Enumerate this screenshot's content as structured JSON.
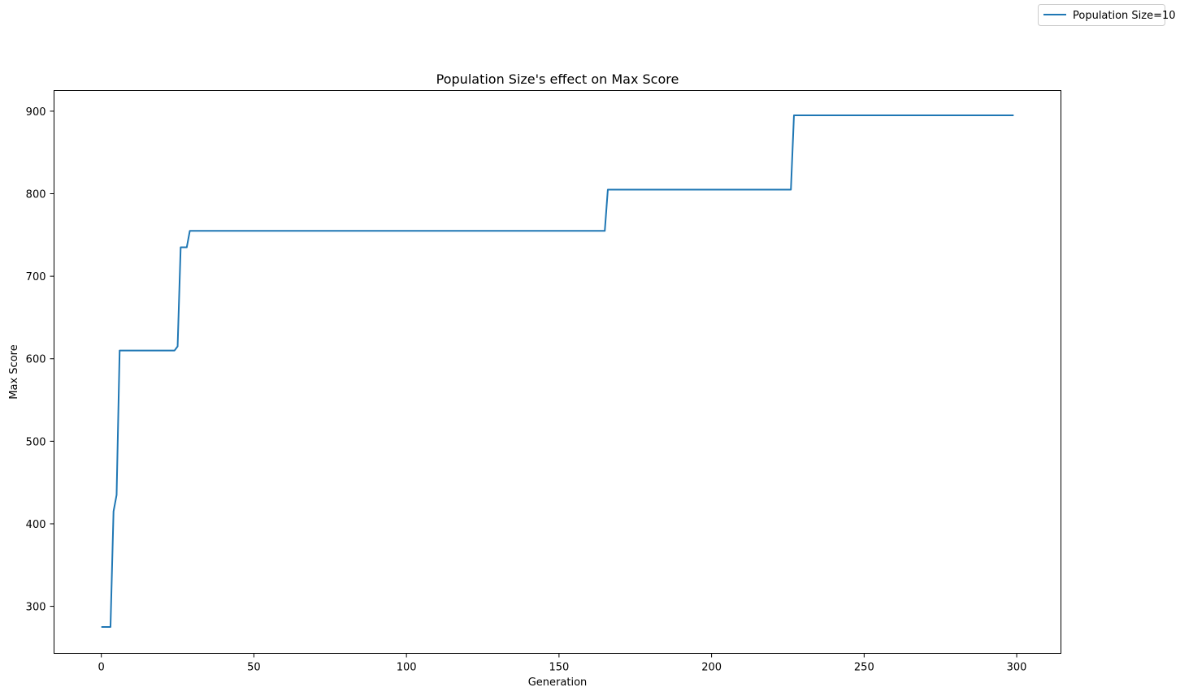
{
  "chart_data": {
    "type": "line",
    "title": "Population Size's effect on Max Score",
    "xlabel": "Generation",
    "ylabel": "Max Score",
    "xlim": [
      -15.5,
      314.5
    ],
    "ylim": [
      243,
      925
    ],
    "xticks": [
      0,
      50,
      100,
      150,
      200,
      250,
      300
    ],
    "yticks": [
      300,
      400,
      500,
      600,
      700,
      800,
      900
    ],
    "grid": false,
    "legend_position": "top-right (outside axes)",
    "series": [
      {
        "name": "Population Size=10",
        "color": "#1f77b4",
        "x": [
          0,
          3,
          4,
          5,
          6,
          24,
          25,
          26,
          28,
          29,
          165,
          166,
          226,
          227,
          299
        ],
        "y": [
          275,
          275,
          415,
          435,
          610,
          610,
          615,
          735,
          735,
          755,
          755,
          805,
          805,
          895,
          895
        ]
      }
    ]
  }
}
